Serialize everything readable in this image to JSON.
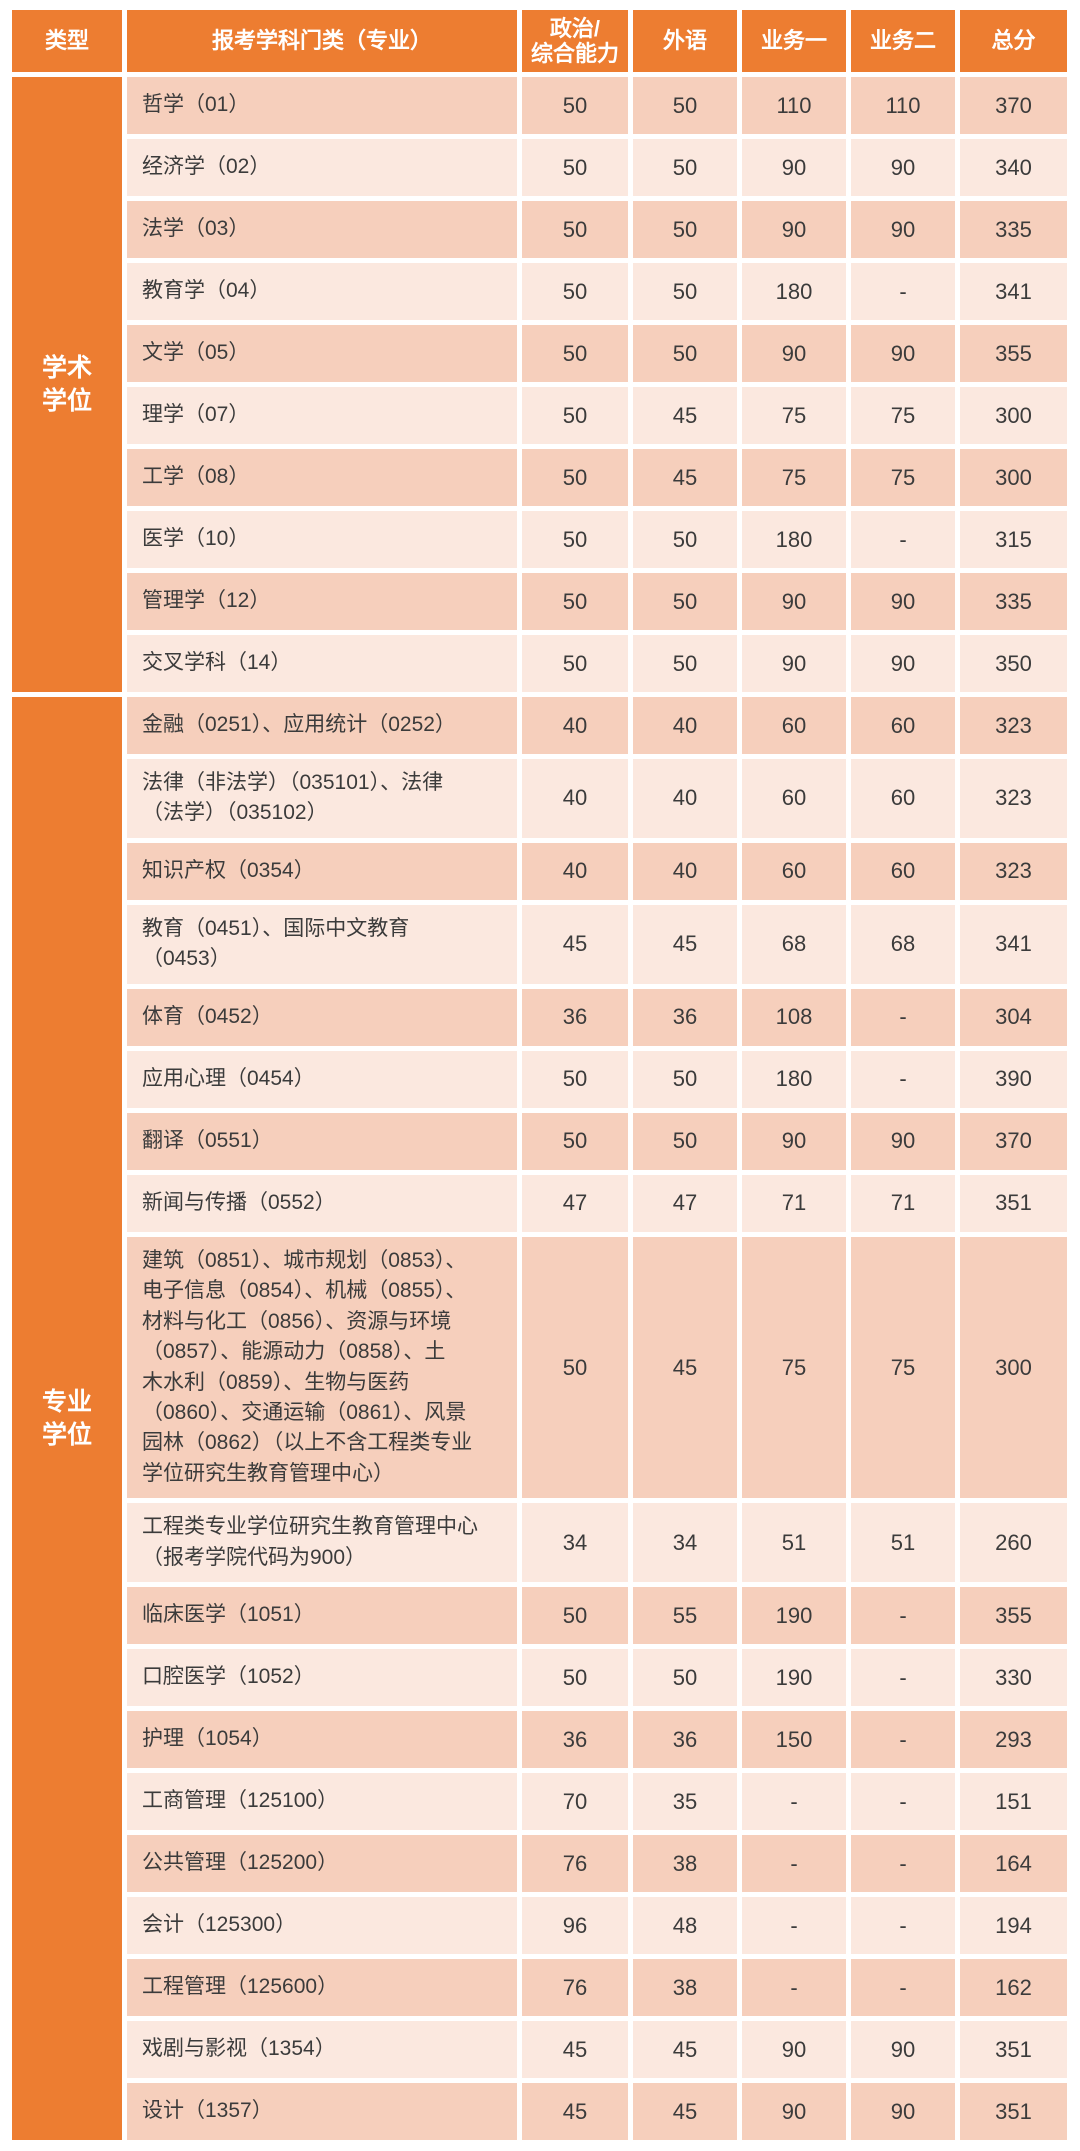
{
  "colors": {
    "accent_orange": "#ED7D31",
    "row_dark": "#F6CFBC",
    "row_light": "#FBE8DF",
    "header_text": "#FFFFFF",
    "body_text": "#3B3B3B"
  },
  "table": {
    "header": {
      "type": "类型",
      "subject": "报考学科门类（专业）",
      "politics": "政治/\n综合能力",
      "foreign": "外语",
      "biz1": "业务一",
      "biz2": "业务二",
      "total": "总分"
    },
    "sections": [
      {
        "type_label": "学术\n学位",
        "rows": [
          {
            "subject": "哲学（01）",
            "politics": "50",
            "foreign": "50",
            "biz1": "110",
            "biz2": "110",
            "total": "370"
          },
          {
            "subject": "经济学（02）",
            "politics": "50",
            "foreign": "50",
            "biz1": "90",
            "biz2": "90",
            "total": "340"
          },
          {
            "subject": "法学（03）",
            "politics": "50",
            "foreign": "50",
            "biz1": "90",
            "biz2": "90",
            "total": "335"
          },
          {
            "subject": "教育学（04）",
            "politics": "50",
            "foreign": "50",
            "biz1": "180",
            "biz2": "-",
            "total": "341"
          },
          {
            "subject": "文学（05）",
            "politics": "50",
            "foreign": "50",
            "biz1": "90",
            "biz2": "90",
            "total": "355"
          },
          {
            "subject": "理学（07）",
            "politics": "50",
            "foreign": "45",
            "biz1": "75",
            "biz2": "75",
            "total": "300"
          },
          {
            "subject": "工学（08）",
            "politics": "50",
            "foreign": "45",
            "biz1": "75",
            "biz2": "75",
            "total": "300"
          },
          {
            "subject": "医学（10）",
            "politics": "50",
            "foreign": "50",
            "biz1": "180",
            "biz2": "-",
            "total": "315"
          },
          {
            "subject": "管理学（12）",
            "politics": "50",
            "foreign": "50",
            "biz1": "90",
            "biz2": "90",
            "total": "335"
          },
          {
            "subject": "交叉学科（14）",
            "politics": "50",
            "foreign": "50",
            "biz1": "90",
            "biz2": "90",
            "total": "350"
          }
        ]
      },
      {
        "type_label": "专业\n学位",
        "rows": [
          {
            "subject": "金融（0251）、应用统计（0252）",
            "politics": "40",
            "foreign": "40",
            "biz1": "60",
            "biz2": "60",
            "total": "323"
          },
          {
            "subject": "法律（非法学）（035101）、法律\n（法学）（035102）",
            "politics": "40",
            "foreign": "40",
            "biz1": "60",
            "biz2": "60",
            "total": "323"
          },
          {
            "subject": "知识产权（0354）",
            "politics": "40",
            "foreign": "40",
            "biz1": "60",
            "biz2": "60",
            "total": "323"
          },
          {
            "subject": "教育（0451）、国际中文教育\n（0453）",
            "politics": "45",
            "foreign": "45",
            "biz1": "68",
            "biz2": "68",
            "total": "341"
          },
          {
            "subject": "体育（0452）",
            "politics": "36",
            "foreign": "36",
            "biz1": "108",
            "biz2": "-",
            "total": "304"
          },
          {
            "subject": "应用心理（0454）",
            "politics": "50",
            "foreign": "50",
            "biz1": "180",
            "biz2": "-",
            "total": "390"
          },
          {
            "subject": "翻译（0551）",
            "politics": "50",
            "foreign": "50",
            "biz1": "90",
            "biz2": "90",
            "total": "370"
          },
          {
            "subject": "新闻与传播（0552）",
            "politics": "47",
            "foreign": "47",
            "biz1": "71",
            "biz2": "71",
            "total": "351"
          },
          {
            "subject": "建筑（0851）、城市规划（0853）、\n电子信息（0854）、机械（0855）、\n材料与化工（0856）、资源与环境\n（0857）、能源动力（0858）、土\n木水利（0859）、生物与医药\n（0860）、交通运输（0861）、风景\n园林（0862）（以上不含工程类专业\n学位研究生教育管理中心）",
            "politics": "50",
            "foreign": "45",
            "biz1": "75",
            "biz2": "75",
            "total": "300"
          },
          {
            "subject": "工程类专业学位研究生教育管理中心\n（报考学院代码为900）",
            "politics": "34",
            "foreign": "34",
            "biz1": "51",
            "biz2": "51",
            "total": "260"
          },
          {
            "subject": "临床医学（1051）",
            "politics": "50",
            "foreign": "55",
            "biz1": "190",
            "biz2": "-",
            "total": "355"
          },
          {
            "subject": "口腔医学（1052）",
            "politics": "50",
            "foreign": "50",
            "biz1": "190",
            "biz2": "-",
            "total": "330"
          },
          {
            "subject": "护理（1054）",
            "politics": "36",
            "foreign": "36",
            "biz1": "150",
            "biz2": "-",
            "total": "293"
          },
          {
            "subject": "工商管理（125100）",
            "politics": "70",
            "foreign": "35",
            "biz1": "-",
            "biz2": "-",
            "total": "151"
          },
          {
            "subject": "公共管理（125200）",
            "politics": "76",
            "foreign": "38",
            "biz1": "-",
            "biz2": "-",
            "total": "164"
          },
          {
            "subject": "会计（125300）",
            "politics": "96",
            "foreign": "48",
            "biz1": "-",
            "biz2": "-",
            "total": "194"
          },
          {
            "subject": "工程管理（125600）",
            "politics": "76",
            "foreign": "38",
            "biz1": "-",
            "biz2": "-",
            "total": "162"
          },
          {
            "subject": "戏剧与影视（1354）",
            "politics": "45",
            "foreign": "45",
            "biz1": "90",
            "biz2": "90",
            "total": "351"
          },
          {
            "subject": "设计（1357）",
            "politics": "45",
            "foreign": "45",
            "biz1": "90",
            "biz2": "90",
            "total": "351"
          }
        ]
      }
    ]
  }
}
